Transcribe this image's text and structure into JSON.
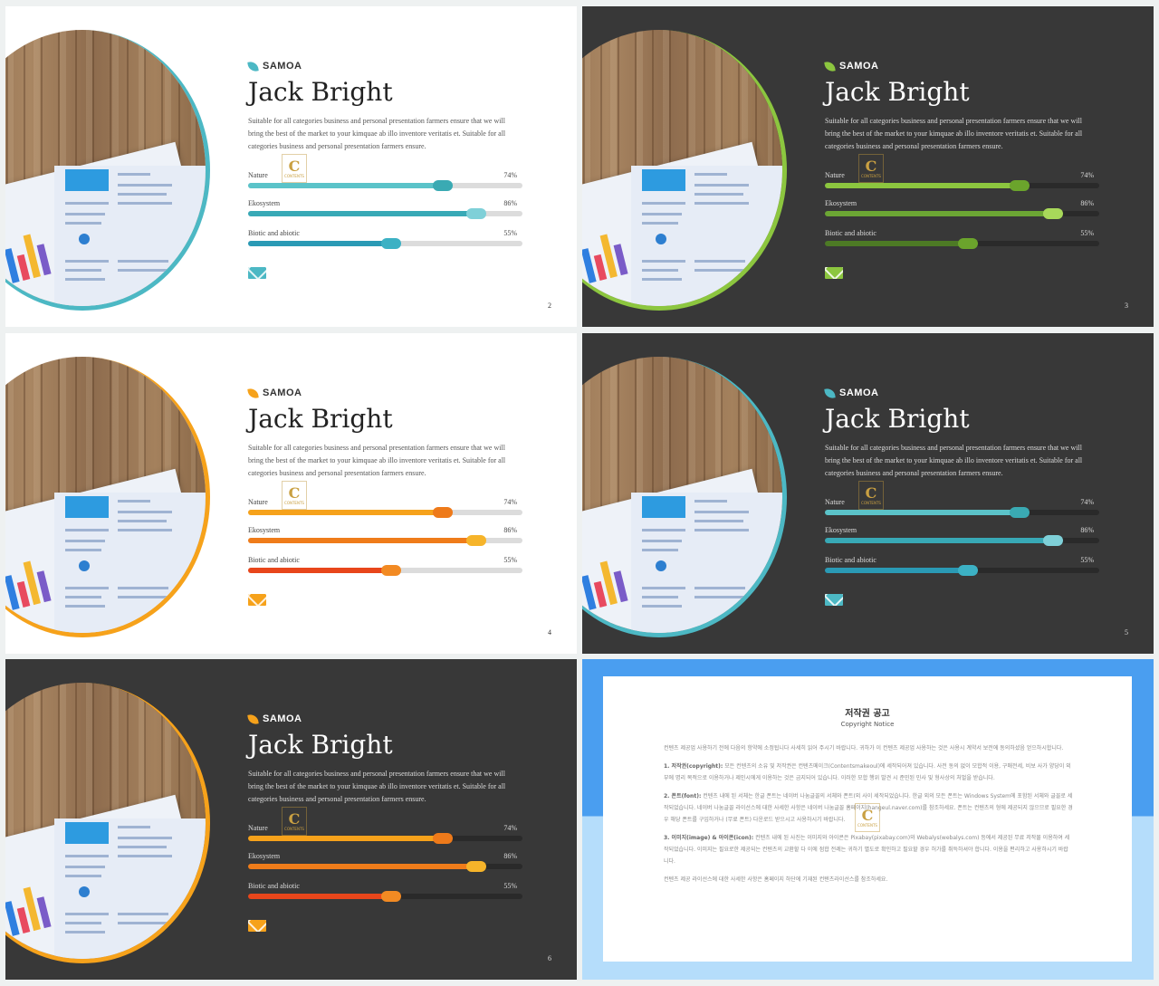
{
  "slides": [
    {
      "theme": "light",
      "accent": "#4cb8c4",
      "logo": "SAMOA",
      "title": "Jack Bright",
      "description": "Suitable for all categories  business and personal presentation  farmers ensure that we will  bring the best of the market to your kimquae ab illo inventore veritatis  et. Suitable for all categories  business and personal  presentation farmers ensure.",
      "skills": [
        {
          "label": "Nature",
          "value": "74%",
          "color": "#5bc3c9",
          "knob": "#3aaab3"
        },
        {
          "label": "Ekosystem",
          "value": "86%",
          "color": "#38a9b6",
          "knob": "#7fd0d8"
        },
        {
          "label": "Biotic and abiotic",
          "value": "55%",
          "color": "#2a9ab5",
          "knob": "#3cb1c4"
        }
      ],
      "page": "2"
    },
    {
      "theme": "dark",
      "accent": "#8cc63f",
      "logo": "SAMOA",
      "title": "Jack Bright",
      "description": "Suitable for all categories  business and personal presentation  farmers ensure that we will  bring the best of the market to your kimquae ab illo inventore veritatis  et. Suitable for all categories  business and personal  presentation farmers ensure.",
      "skills": [
        {
          "label": "Nature",
          "value": "74%",
          "color": "#8cc63f",
          "knob": "#6ba42c"
        },
        {
          "label": "Ekosystem",
          "value": "86%",
          "color": "#6ca634",
          "knob": "#a8d85a"
        },
        {
          "label": "Biotic and abiotic",
          "value": "55%",
          "color": "#4d7a25",
          "knob": "#6ba42c"
        }
      ],
      "page": "3"
    },
    {
      "theme": "light",
      "accent": "#f6a21b",
      "logo": "SAMOA",
      "title": "Jack Bright",
      "description": "Suitable for all categories  business and personal presentation  farmers ensure that we will  bring the best of the market to your kimquae ab illo inventore veritatis  et. Suitable for all categories  business and personal  presentation farmers ensure.",
      "skills": [
        {
          "label": "Nature",
          "value": "74%",
          "color": "#f6a21b",
          "knob": "#ee7a1a"
        },
        {
          "label": "Ekosystem",
          "value": "86%",
          "color": "#ef7c1a",
          "knob": "#f6b42a"
        },
        {
          "label": "Biotic and abiotic",
          "value": "55%",
          "color": "#e8461b",
          "knob": "#f28a23"
        }
      ],
      "page": "4"
    },
    {
      "theme": "dark",
      "accent": "#4cb8c4",
      "logo": "SAMOA",
      "title": "Jack Bright",
      "description": "Suitable for all categories  business and personal presentation  farmers ensure that we will  bring the best of the market to your kimquae ab illo inventore veritatis  et. Suitable for all categories  business and personal  presentation farmers ensure.",
      "skills": [
        {
          "label": "Nature",
          "value": "74%",
          "color": "#5bc3c9",
          "knob": "#3aaab3"
        },
        {
          "label": "Ekosystem",
          "value": "86%",
          "color": "#38a9b6",
          "knob": "#7fd0d8"
        },
        {
          "label": "Biotic and abiotic",
          "value": "55%",
          "color": "#2a9ab5",
          "knob": "#3cb1c4"
        }
      ],
      "page": "5"
    },
    {
      "theme": "dark",
      "accent": "#f6a21b",
      "logo": "SAMOA",
      "title": "Jack Bright",
      "description": "Suitable for all categories  business and personal presentation  farmers ensure that we will  bring the best of the market to your kimquae ab illo inventore veritatis  et. Suitable for all categories  business and personal  presentation farmers ensure.",
      "skills": [
        {
          "label": "Nature",
          "value": "74%",
          "color": "#f6a21b",
          "knob": "#ee7a1a"
        },
        {
          "label": "Ekosystem",
          "value": "86%",
          "color": "#ef7c1a",
          "knob": "#f6b42a"
        },
        {
          "label": "Biotic and abiotic",
          "value": "55%",
          "color": "#e8461b",
          "knob": "#f28a23"
        }
      ],
      "page": "6"
    }
  ],
  "copyright": {
    "title": "저작권 공고",
    "subtitle": "Copyright Notice",
    "intro": "컨텐츠 제공업 사용하기 전에 다음의 항약에 소정됩니다 사세히 읽어 주시기 바랍니다. 귀하가 이 컨텐츠 제공업 사용하는 것은 사용시 계약서 보전에 동의하셨음 얻으하시합니다.",
    "item1_head": "1. 저작권(copyright):",
    "item1": " 모든 컨텐츠의 소유 및 저작권은 컨텐츠메이크(Contentsmakeoul)에 세작되어져 있습니다. 사전 동의 없이 모합적 이용, 구매전세, 비보 사가 양당이 외부에 명리 목적으로 이용하거나 제인시에게 이용하는 것은 금지되어 있습니다. 이러한 모합 행위 발견 시 준민된 민사 및 형사상의 처벌을 받습니다.",
    "item2_head": "2. 폰트(font):",
    "item2": " 컨텐츠 내에 된 서체는 한글 폰트는 네이버 나눔글꼴의 서체와 폰트(외 사이 세작되었습니다. 한글 외의 모든 폰트는 Windows System에 포함된 서체와 글꼴로 세작되었습니다. 네이버 나눔글꼴 라이선스에 대한 사세한 사항은 네이버 나눔글꼴 홈페이지(hangeul.naver.com)를 참조하세요. 폰트는 컨텐츠의 형에 제공되지 않으므로 필요한 경우 해당 폰트를 구입하거나 (무료 폰트) 다운로드 받으시고 사용하시기 바랍니다.",
    "item3_head": "3. 이미지(image) & 아이콘(icon):",
    "item3": " 컨텐츠 내에 된 사진는 이미지와 아이콘은 Pixabay(pixabay.com)와 Webalys(webalys.com) 등에서 제공된 무료 저작물 이용하여 세작되었습니다. 이미지는 필요로한 제공되는 컨텐츠의 교환할 다 이에 점합 전례는 귀하기 별도로 확인하고 필요할 경우 허가를 취득하셔야 합니다. 이용을 편리하고 사용하시기 바랍니다.",
    "outro": "컨텐츠 제공 라이선스에 대한 사세한 사항은 홈페이지 하단에 기재된 컨텐츠라이선스를 참조하세요."
  },
  "watermark": {
    "letter": "C",
    "text": "CONTENTS"
  }
}
